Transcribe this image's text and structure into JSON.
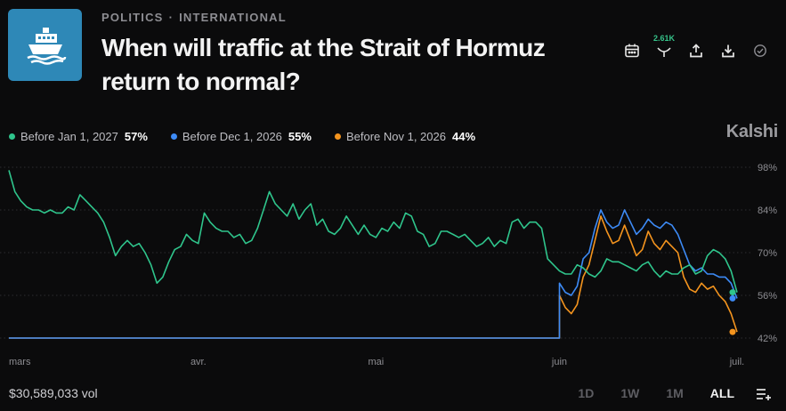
{
  "header": {
    "category": "POLITICS",
    "subcategory": "INTERNATIONAL",
    "title": "When will traffic at the Strait of Hormuz return to normal?",
    "logo_icon": "ship-icon",
    "followers": "2.61K",
    "icons": [
      "calendar-icon",
      "bookmark-icon",
      "share-icon",
      "download-icon",
      "check-circle-icon"
    ]
  },
  "brand": "Kalshi",
  "legend": [
    {
      "label": "Before Jan 1, 2027",
      "pct": "57%",
      "color": "#2fc58c"
    },
    {
      "label": "Before Dec 1, 2026",
      "pct": "55%",
      "color": "#3d8bf7"
    },
    {
      "label": "Before Nov 1, 2026",
      "pct": "44%",
      "color": "#f4941e"
    }
  ],
  "footer": {
    "volume": "$30,589,033 vol",
    "ranges": [
      "1D",
      "1W",
      "1M",
      "ALL"
    ],
    "active_range": "ALL",
    "settings_icon": "chart-settings-icon"
  },
  "chart_data": {
    "type": "line",
    "y_ticks": [
      {
        "value": 98,
        "label": "98%"
      },
      {
        "value": 84,
        "label": "84%"
      },
      {
        "value": 70,
        "label": "70%"
      },
      {
        "value": 56,
        "label": "56%"
      },
      {
        "value": 42,
        "label": "42%"
      }
    ],
    "ylim": [
      42,
      98
    ],
    "x_ticks": [
      {
        "date": "03-01",
        "label": "mars"
      },
      {
        "date": "04-01",
        "label": "avr."
      },
      {
        "date": "05-01",
        "label": "mai"
      },
      {
        "date": "06-01",
        "label": "juin"
      },
      {
        "date": "07-01",
        "label": "juil."
      }
    ],
    "grid": "horizontal dotted",
    "series": [
      {
        "name": "Before Jan 1, 2027",
        "color": "#2fc58c",
        "points": [
          [
            "02-28",
            97
          ],
          [
            "03-01",
            90
          ],
          [
            "03-02",
            87
          ],
          [
            "03-03",
            85
          ],
          [
            "03-04",
            84
          ],
          [
            "03-05",
            84
          ],
          [
            "03-06",
            83
          ],
          [
            "03-07",
            84
          ],
          [
            "03-08",
            83
          ],
          [
            "03-09",
            83
          ],
          [
            "03-10",
            85
          ],
          [
            "03-11",
            84
          ],
          [
            "03-12",
            89
          ],
          [
            "03-13",
            87
          ],
          [
            "03-14",
            85
          ],
          [
            "03-15",
            83
          ],
          [
            "03-16",
            80
          ],
          [
            "03-17",
            75
          ],
          [
            "03-18",
            69
          ],
          [
            "03-19",
            72
          ],
          [
            "03-20",
            74
          ],
          [
            "03-21",
            72
          ],
          [
            "03-22",
            73
          ],
          [
            "03-23",
            70
          ],
          [
            "03-24",
            66
          ],
          [
            "03-25",
            60
          ],
          [
            "03-26",
            62
          ],
          [
            "03-27",
            67
          ],
          [
            "03-28",
            71
          ],
          [
            "03-29",
            72
          ],
          [
            "03-30",
            76
          ],
          [
            "03-31",
            74
          ],
          [
            "04-01",
            73
          ],
          [
            "04-02",
            83
          ],
          [
            "04-03",
            80
          ],
          [
            "04-04",
            78
          ],
          [
            "04-05",
            77
          ],
          [
            "04-06",
            77
          ],
          [
            "04-07",
            75
          ],
          [
            "04-08",
            76
          ],
          [
            "04-09",
            73
          ],
          [
            "04-10",
            74
          ],
          [
            "04-11",
            78
          ],
          [
            "04-12",
            84
          ],
          [
            "04-13",
            90
          ],
          [
            "04-14",
            86
          ],
          [
            "04-15",
            84
          ],
          [
            "04-16",
            82
          ],
          [
            "04-17",
            86
          ],
          [
            "04-18",
            81
          ],
          [
            "04-19",
            84
          ],
          [
            "04-20",
            86
          ],
          [
            "04-21",
            79
          ],
          [
            "04-22",
            81
          ],
          [
            "04-23",
            77
          ],
          [
            "04-24",
            76
          ],
          [
            "04-25",
            78
          ],
          [
            "04-26",
            82
          ],
          [
            "04-27",
            79
          ],
          [
            "04-28",
            76
          ],
          [
            "04-29",
            79
          ],
          [
            "04-30",
            76
          ],
          [
            "05-01",
            75
          ],
          [
            "05-02",
            78
          ],
          [
            "05-03",
            77
          ],
          [
            "05-04",
            80
          ],
          [
            "05-05",
            78
          ],
          [
            "05-06",
            83
          ],
          [
            "05-07",
            82
          ],
          [
            "05-08",
            77
          ],
          [
            "05-09",
            76
          ],
          [
            "05-10",
            72
          ],
          [
            "05-11",
            73
          ],
          [
            "05-12",
            77
          ],
          [
            "05-13",
            77
          ],
          [
            "05-14",
            76
          ],
          [
            "05-15",
            75
          ],
          [
            "05-16",
            76
          ],
          [
            "05-17",
            74
          ],
          [
            "05-18",
            72
          ],
          [
            "05-19",
            73
          ],
          [
            "05-20",
            75
          ],
          [
            "05-21",
            72
          ],
          [
            "05-22",
            74
          ],
          [
            "05-23",
            73
          ],
          [
            "05-24",
            80
          ],
          [
            "05-25",
            81
          ],
          [
            "05-26",
            78
          ],
          [
            "05-27",
            80
          ],
          [
            "05-28",
            80
          ],
          [
            "05-29",
            78
          ],
          [
            "05-30",
            68
          ],
          [
            "05-31",
            66
          ],
          [
            "06-01",
            64
          ],
          [
            "06-02",
            63
          ],
          [
            "06-03",
            63
          ],
          [
            "06-04",
            66
          ],
          [
            "06-05",
            65
          ],
          [
            "06-06",
            63
          ],
          [
            "06-07",
            62
          ],
          [
            "06-08",
            64
          ],
          [
            "06-09",
            68
          ],
          [
            "06-10",
            67
          ],
          [
            "06-11",
            67
          ],
          [
            "06-12",
            66
          ],
          [
            "06-13",
            65
          ],
          [
            "06-14",
            64
          ],
          [
            "06-15",
            66
          ],
          [
            "06-16",
            67
          ],
          [
            "06-17",
            64
          ],
          [
            "06-18",
            62
          ],
          [
            "06-19",
            64
          ],
          [
            "06-20",
            63
          ],
          [
            "06-21",
            63
          ],
          [
            "06-22",
            65
          ],
          [
            "06-23",
            66
          ],
          [
            "06-24",
            63
          ],
          [
            "06-25",
            64
          ],
          [
            "06-26",
            69
          ],
          [
            "06-27",
            71
          ],
          [
            "06-28",
            70
          ],
          [
            "06-29",
            68
          ],
          [
            "06-30",
            64
          ],
          [
            "07-01",
            57
          ]
        ]
      },
      {
        "name": "Before Dec 1, 2026",
        "color": "#3d8bf7",
        "points": [
          [
            "02-28",
            42
          ],
          [
            "06-01",
            42
          ],
          [
            "06-01",
            60
          ],
          [
            "06-02",
            57
          ],
          [
            "06-03",
            56
          ],
          [
            "06-04",
            59
          ],
          [
            "06-05",
            68
          ],
          [
            "06-06",
            70
          ],
          [
            "06-07",
            78
          ],
          [
            "06-08",
            84
          ],
          [
            "06-09",
            80
          ],
          [
            "06-10",
            78
          ],
          [
            "06-11",
            79
          ],
          [
            "06-12",
            84
          ],
          [
            "06-13",
            80
          ],
          [
            "06-14",
            76
          ],
          [
            "06-15",
            78
          ],
          [
            "06-16",
            81
          ],
          [
            "06-17",
            79
          ],
          [
            "06-18",
            78
          ],
          [
            "06-19",
            80
          ],
          [
            "06-20",
            79
          ],
          [
            "06-21",
            76
          ],
          [
            "06-22",
            71
          ],
          [
            "06-23",
            66
          ],
          [
            "06-24",
            64
          ],
          [
            "06-25",
            65
          ],
          [
            "06-26",
            63
          ],
          [
            "06-27",
            63
          ],
          [
            "06-28",
            62
          ],
          [
            "06-29",
            62
          ],
          [
            "06-30",
            60
          ],
          [
            "07-01",
            55
          ]
        ]
      },
      {
        "name": "Before Nov 1, 2026",
        "color": "#f4941e",
        "points": [
          [
            "02-28",
            42
          ],
          [
            "06-01",
            42
          ],
          [
            "06-01",
            56
          ],
          [
            "06-02",
            52
          ],
          [
            "06-03",
            50
          ],
          [
            "06-04",
            53
          ],
          [
            "06-05",
            62
          ],
          [
            "06-06",
            66
          ],
          [
            "06-07",
            74
          ],
          [
            "06-08",
            82
          ],
          [
            "06-09",
            77
          ],
          [
            "06-10",
            73
          ],
          [
            "06-11",
            74
          ],
          [
            "06-12",
            79
          ],
          [
            "06-13",
            74
          ],
          [
            "06-14",
            69
          ],
          [
            "06-15",
            71
          ],
          [
            "06-16",
            77
          ],
          [
            "06-17",
            73
          ],
          [
            "06-18",
            71
          ],
          [
            "06-19",
            74
          ],
          [
            "06-20",
            72
          ],
          [
            "06-21",
            70
          ],
          [
            "06-22",
            62
          ],
          [
            "06-23",
            58
          ],
          [
            "06-24",
            57
          ],
          [
            "06-25",
            60
          ],
          [
            "06-26",
            58
          ],
          [
            "06-27",
            59
          ],
          [
            "06-28",
            56
          ],
          [
            "06-29",
            54
          ],
          [
            "06-30",
            50
          ],
          [
            "07-01",
            44
          ]
        ]
      }
    ]
  }
}
